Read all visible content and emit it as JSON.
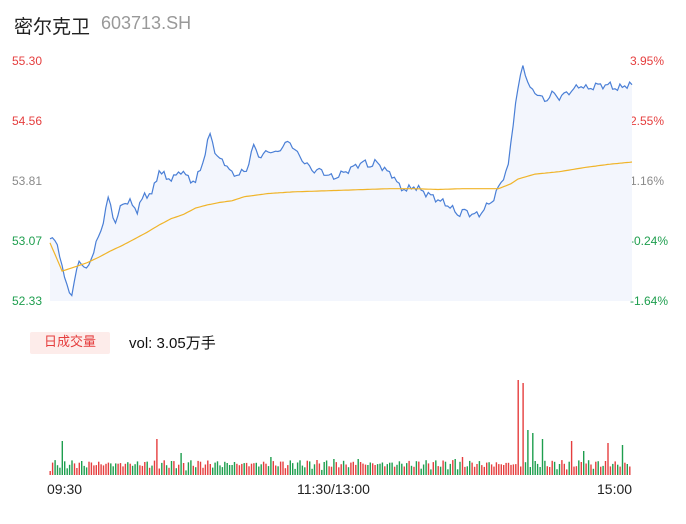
{
  "header": {
    "name": "密尔克卫",
    "code": "603713.SH"
  },
  "chart_data": {
    "type": "line",
    "price_axis": {
      "labels": [
        "55.30",
        "54.56",
        "53.81",
        "53.07",
        "52.33"
      ],
      "range": [
        52.33,
        55.3
      ]
    },
    "pct_axis": {
      "labels": [
        "3.95%",
        "2.55%",
        "1.16%",
        "-0.24%",
        "-1.64%"
      ]
    },
    "x_ticks": [
      "09:30",
      "11:30/13:00",
      "15:00"
    ],
    "colors": {
      "price": "#4a7fd6",
      "avg": "#f0b429",
      "up": "#e53e3e",
      "down": "#1e9e4e"
    },
    "price_keys": [
      [
        0,
        53.1
      ],
      [
        3,
        53.05
      ],
      [
        6,
        52.6
      ],
      [
        9,
        52.4
      ],
      [
        12,
        52.85
      ],
      [
        15,
        52.7
      ],
      [
        18,
        52.95
      ],
      [
        21,
        53.2
      ],
      [
        24,
        53.6
      ],
      [
        27,
        53.3
      ],
      [
        30,
        53.55
      ],
      [
        33,
        53.55
      ],
      [
        36,
        53.45
      ],
      [
        39,
        53.65
      ],
      [
        42,
        53.65
      ],
      [
        45,
        53.95
      ],
      [
        48,
        53.85
      ],
      [
        51,
        53.85
      ],
      [
        54,
        53.95
      ],
      [
        57,
        53.85
      ],
      [
        60,
        53.8
      ],
      [
        63,
        54.05
      ],
      [
        66,
        54.4
      ],
      [
        69,
        54.1
      ],
      [
        72,
        54.05
      ],
      [
        75,
        53.9
      ],
      [
        78,
        53.9
      ],
      [
        81,
        53.95
      ],
      [
        84,
        54.25
      ],
      [
        87,
        54.1
      ],
      [
        90,
        54.2
      ],
      [
        93,
        54.15
      ],
      [
        96,
        54.25
      ],
      [
        99,
        54.3
      ],
      [
        102,
        54.15
      ],
      [
        105,
        54.05
      ],
      [
        108,
        53.95
      ],
      [
        111,
        53.95
      ],
      [
        114,
        53.9
      ],
      [
        117,
        53.85
      ],
      [
        120,
        53.9
      ],
      [
        123,
        53.95
      ],
      [
        126,
        54.0
      ],
      [
        129,
        54.05
      ],
      [
        132,
        54.0
      ],
      [
        135,
        54.05
      ],
      [
        138,
        53.95
      ],
      [
        141,
        53.9
      ],
      [
        144,
        53.75
      ],
      [
        147,
        53.7
      ],
      [
        150,
        53.75
      ],
      [
        153,
        53.7
      ],
      [
        156,
        53.65
      ],
      [
        159,
        53.6
      ],
      [
        162,
        53.55
      ],
      [
        165,
        53.5
      ],
      [
        168,
        53.4
      ],
      [
        171,
        53.45
      ],
      [
        174,
        53.4
      ],
      [
        177,
        53.4
      ],
      [
        180,
        53.5
      ],
      [
        183,
        53.6
      ],
      [
        186,
        53.8
      ],
      [
        189,
        54.0
      ],
      [
        192,
        54.8
      ],
      [
        195,
        55.25
      ],
      [
        198,
        54.95
      ],
      [
        201,
        54.9
      ],
      [
        204,
        54.8
      ],
      [
        207,
        54.9
      ],
      [
        210,
        54.85
      ],
      [
        213,
        54.9
      ],
      [
        216,
        54.95
      ],
      [
        219,
        55.0
      ],
      [
        222,
        54.95
      ],
      [
        225,
        55.0
      ],
      [
        228,
        55.0
      ],
      [
        231,
        55.0
      ],
      [
        234,
        54.95
      ],
      [
        237,
        55.0
      ],
      [
        240,
        55.0
      ]
    ],
    "avg_keys": [
      [
        0,
        53.05
      ],
      [
        5,
        52.7
      ],
      [
        10,
        52.75
      ],
      [
        15,
        52.8
      ],
      [
        20,
        52.87
      ],
      [
        25,
        52.95
      ],
      [
        30,
        53.02
      ],
      [
        35,
        53.1
      ],
      [
        40,
        53.18
      ],
      [
        45,
        53.27
      ],
      [
        50,
        53.35
      ],
      [
        55,
        53.4
      ],
      [
        60,
        53.48
      ],
      [
        65,
        53.52
      ],
      [
        70,
        53.55
      ],
      [
        75,
        53.57
      ],
      [
        80,
        53.62
      ],
      [
        85,
        53.64
      ],
      [
        90,
        53.66
      ],
      [
        100,
        53.68
      ],
      [
        110,
        53.69
      ],
      [
        120,
        53.7
      ],
      [
        130,
        53.71
      ],
      [
        140,
        53.72
      ],
      [
        150,
        53.72
      ],
      [
        160,
        53.71
      ],
      [
        170,
        53.72
      ],
      [
        180,
        53.72
      ],
      [
        185,
        53.72
      ],
      [
        190,
        53.78
      ],
      [
        193,
        53.84
      ],
      [
        200,
        53.9
      ],
      [
        210,
        53.93
      ],
      [
        220,
        53.98
      ],
      [
        230,
        54.02
      ],
      [
        240,
        54.05
      ]
    ],
    "volume_label": "日成交量",
    "volume_text": "vol: 3.05万手",
    "volume_spikes": [
      [
        5,
        34
      ],
      [
        44,
        36
      ],
      [
        54,
        22
      ],
      [
        91,
        18
      ],
      [
        117,
        16
      ],
      [
        127,
        16
      ],
      [
        167,
        16
      ],
      [
        170,
        18
      ],
      [
        193,
        95
      ],
      [
        195,
        92
      ],
      [
        197,
        45
      ],
      [
        199,
        42
      ],
      [
        203,
        36
      ],
      [
        215,
        34
      ],
      [
        220,
        24
      ],
      [
        230,
        32
      ],
      [
        236,
        30
      ]
    ]
  }
}
